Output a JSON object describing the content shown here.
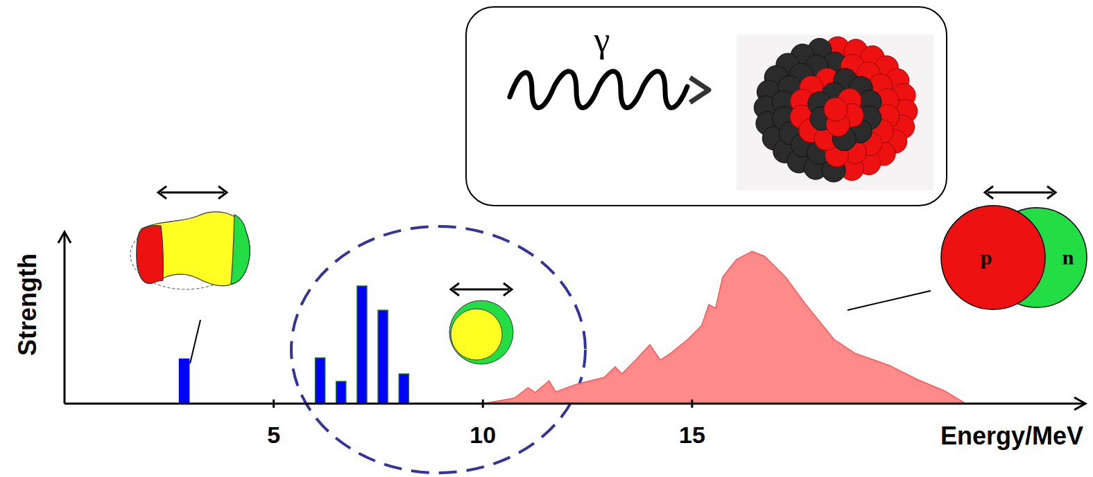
{
  "chart_data": {
    "type": "bar",
    "x_label": "Energy/MeV",
    "y_label": "Strength",
    "xlim": [
      0,
      24.4
    ],
    "ylim": [
      0,
      100
    ],
    "xticks": [
      5,
      10,
      15
    ],
    "tick_labels": "x",
    "annotations": {
      "photon": "γ",
      "proton": "p",
      "neutron": "n"
    },
    "series": [
      {
        "type": "bar",
        "color": "#0000ff",
        "x": [
          2.86,
          6.11,
          6.61,
          7.11,
          7.61,
          8.11
        ],
        "values": [
          26,
          26.6,
          12.9,
          68.5,
          54.4,
          17.3
        ]
      },
      {
        "type": "area",
        "color": "#ff8a8a",
        "x": [
          10.0,
          10.75,
          11.08,
          11.25,
          11.58,
          11.74,
          12.24,
          12.9,
          13.16,
          13.32,
          13.65,
          13.99,
          14.24,
          14.49,
          14.9,
          15.23,
          15.4,
          15.56,
          15.73,
          16.06,
          16.43,
          16.73,
          17.23,
          17.72,
          18.39,
          18.89,
          19.72,
          20.38,
          21.05,
          21.54
        ],
        "values": [
          0,
          3.2,
          9.3,
          6.5,
          13.3,
          6.9,
          11.3,
          15.3,
          21.4,
          17.3,
          25.4,
          34.3,
          25.4,
          29.4,
          37.5,
          45.6,
          57.7,
          55.6,
          73.8,
          83.9,
          88.7,
          85.9,
          73.8,
          57.7,
          37.5,
          29.4,
          22.2,
          14.1,
          7.3,
          0
        ]
      }
    ]
  }
}
